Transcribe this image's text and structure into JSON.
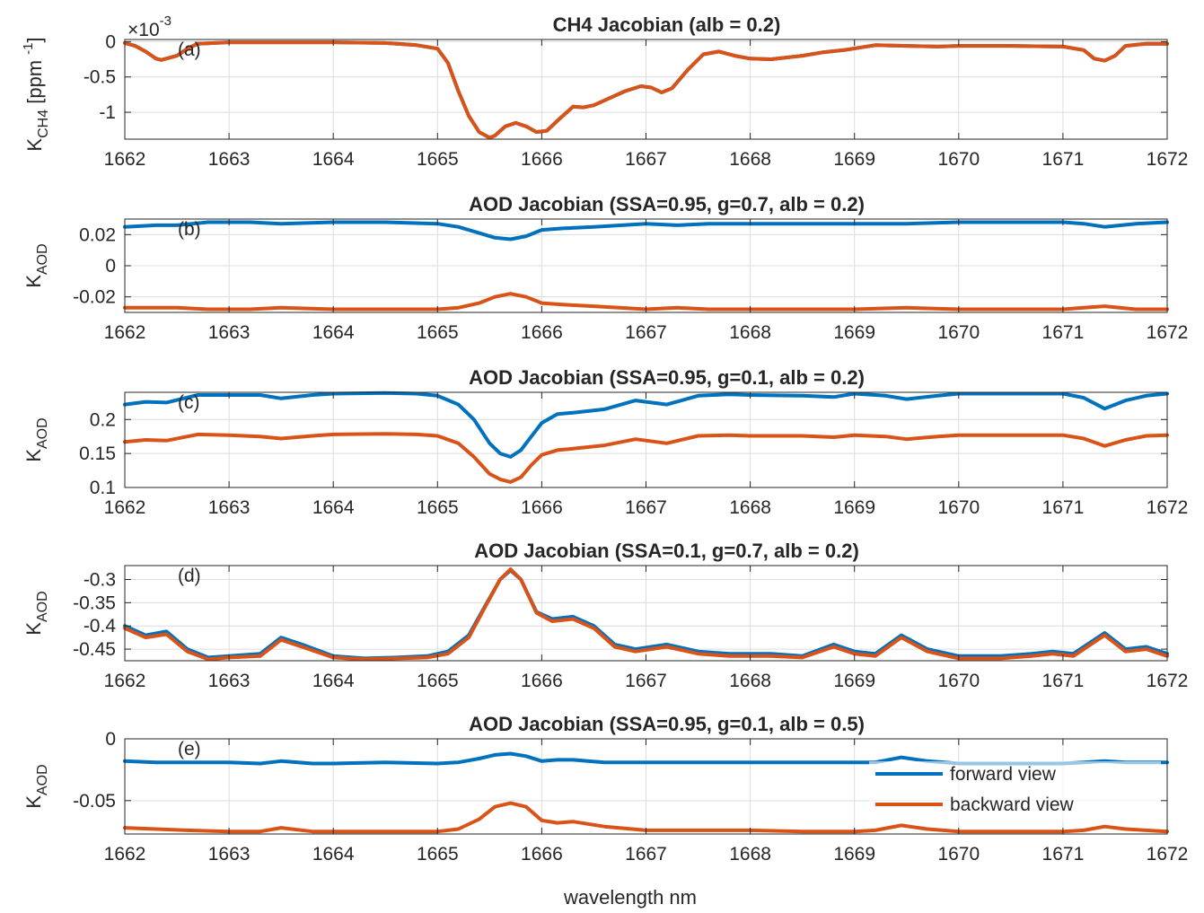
{
  "figure": {
    "xlabel": "wavelength nm",
    "legend": {
      "placement": "inside-bottom-right of panel (e)",
      "entries": [
        {
          "label": "forward view",
          "color": "#0072BD"
        },
        {
          "label": "backward view",
          "color": "#D95319"
        }
      ]
    }
  },
  "chart_data": [
    {
      "type": "line",
      "panel_label": "(a)",
      "title": "CH4 Jacobian (alb = 0.2)",
      "ylabel_main": "K",
      "ylabel_sub": "CH4",
      "ylabel_unit_pre": " [ppm",
      "ylabel_unit_sup": "-1",
      "ylabel_unit_post": "]",
      "exponent_prefix": "×10",
      "exponent": "-3",
      "xlim": [
        1662,
        1672
      ],
      "ylim": [
        -1.38,
        0.03
      ],
      "grid": true,
      "xticks": [
        1662,
        1663,
        1664,
        1665,
        1666,
        1667,
        1668,
        1669,
        1670,
        1671,
        1672
      ],
      "xtick_labels": [
        "1662",
        "1663",
        "1664",
        "1665",
        "1666",
        "1667",
        "1668",
        "1669",
        "1670",
        "1671",
        "1672"
      ],
      "yticks": [
        -1,
        -0.5,
        0
      ],
      "ytick_labels": [
        "-1",
        "-0.5",
        "0"
      ],
      "x": [
        1662.0,
        1662.1,
        1662.2,
        1662.3,
        1662.35,
        1662.5,
        1662.6,
        1662.7,
        1663.0,
        1663.5,
        1664.0,
        1664.5,
        1664.8,
        1665.0,
        1665.1,
        1665.2,
        1665.3,
        1665.4,
        1665.5,
        1665.55,
        1665.65,
        1665.75,
        1665.85,
        1665.95,
        1666.05,
        1666.15,
        1666.3,
        1666.4,
        1666.5,
        1666.65,
        1666.8,
        1666.95,
        1667.05,
        1667.15,
        1667.25,
        1667.4,
        1667.55,
        1667.7,
        1667.85,
        1668.0,
        1668.2,
        1668.5,
        1668.7,
        1668.9,
        1669.2,
        1669.5,
        1669.8,
        1670.0,
        1670.5,
        1671.0,
        1671.2,
        1671.3,
        1671.4,
        1671.5,
        1671.6,
        1671.8,
        1672.0
      ],
      "series": [
        {
          "name": "forward view",
          "color": "#0072BD",
          "values": [
            -0.02,
            -0.06,
            -0.14,
            -0.24,
            -0.26,
            -0.2,
            -0.1,
            -0.03,
            -0.01,
            -0.01,
            -0.01,
            -0.02,
            -0.05,
            -0.1,
            -0.3,
            -0.7,
            -1.05,
            -1.28,
            -1.36,
            -1.33,
            -1.2,
            -1.15,
            -1.2,
            -1.28,
            -1.26,
            -1.12,
            -0.92,
            -0.93,
            -0.9,
            -0.8,
            -0.7,
            -0.63,
            -0.65,
            -0.72,
            -0.66,
            -0.4,
            -0.18,
            -0.14,
            -0.2,
            -0.24,
            -0.25,
            -0.2,
            -0.15,
            -0.12,
            -0.05,
            -0.06,
            -0.07,
            -0.06,
            -0.06,
            -0.07,
            -0.12,
            -0.24,
            -0.27,
            -0.2,
            -0.06,
            -0.03,
            -0.03
          ]
        },
        {
          "name": "backward view",
          "color": "#D95319",
          "values": [
            -0.02,
            -0.06,
            -0.14,
            -0.24,
            -0.26,
            -0.2,
            -0.1,
            -0.03,
            -0.01,
            -0.01,
            -0.01,
            -0.02,
            -0.05,
            -0.1,
            -0.3,
            -0.7,
            -1.05,
            -1.28,
            -1.36,
            -1.33,
            -1.2,
            -1.15,
            -1.2,
            -1.28,
            -1.26,
            -1.12,
            -0.92,
            -0.93,
            -0.9,
            -0.8,
            -0.7,
            -0.63,
            -0.65,
            -0.72,
            -0.66,
            -0.4,
            -0.18,
            -0.14,
            -0.2,
            -0.24,
            -0.25,
            -0.2,
            -0.15,
            -0.12,
            -0.05,
            -0.06,
            -0.07,
            -0.06,
            -0.06,
            -0.07,
            -0.12,
            -0.24,
            -0.27,
            -0.2,
            -0.06,
            -0.03,
            -0.03
          ]
        }
      ]
    },
    {
      "type": "line",
      "panel_label": "(b)",
      "title": "AOD Jacobian (SSA=0.95, g=0.7, alb = 0.2)",
      "ylabel_main": "K",
      "ylabel_sub": "AOD",
      "xlim": [
        1662,
        1672
      ],
      "ylim": [
        -0.03,
        0.03
      ],
      "grid": true,
      "xticks": [
        1662,
        1663,
        1664,
        1665,
        1666,
        1667,
        1668,
        1669,
        1670,
        1671,
        1672
      ],
      "xtick_labels": [
        "1662",
        "1663",
        "1664",
        "1665",
        "1666",
        "1667",
        "1668",
        "1669",
        "1670",
        "1671",
        "1672"
      ],
      "yticks": [
        -0.02,
        0,
        0.02
      ],
      "ytick_labels": [
        "-0.02",
        "0",
        "0.02"
      ],
      "x": [
        1662.0,
        1662.3,
        1662.5,
        1662.8,
        1663.2,
        1663.5,
        1664.0,
        1664.5,
        1665.0,
        1665.2,
        1665.4,
        1665.55,
        1665.7,
        1665.85,
        1666.0,
        1666.2,
        1666.5,
        1667.0,
        1667.3,
        1667.6,
        1668.0,
        1668.5,
        1669.0,
        1669.5,
        1670.0,
        1670.5,
        1671.0,
        1671.2,
        1671.4,
        1671.7,
        1672.0
      ],
      "series": [
        {
          "name": "forward view",
          "color": "#0072BD",
          "values": [
            0.025,
            0.026,
            0.026,
            0.028,
            0.028,
            0.027,
            0.028,
            0.028,
            0.027,
            0.025,
            0.021,
            0.018,
            0.017,
            0.019,
            0.023,
            0.024,
            0.025,
            0.027,
            0.026,
            0.027,
            0.027,
            0.027,
            0.027,
            0.027,
            0.028,
            0.028,
            0.028,
            0.027,
            0.025,
            0.027,
            0.028
          ]
        },
        {
          "name": "backward view",
          "color": "#D95319",
          "values": [
            -0.027,
            -0.027,
            -0.027,
            -0.028,
            -0.028,
            -0.027,
            -0.028,
            -0.028,
            -0.028,
            -0.027,
            -0.024,
            -0.02,
            -0.018,
            -0.02,
            -0.024,
            -0.025,
            -0.026,
            -0.028,
            -0.027,
            -0.028,
            -0.028,
            -0.028,
            -0.028,
            -0.027,
            -0.028,
            -0.028,
            -0.028,
            -0.027,
            -0.026,
            -0.028,
            -0.028
          ]
        }
      ]
    },
    {
      "type": "line",
      "panel_label": "(c)",
      "title": "AOD Jacobian (SSA=0.95, g=0.1, alb = 0.2)",
      "ylabel_main": "K",
      "ylabel_sub": "AOD",
      "xlim": [
        1662,
        1672
      ],
      "ylim": [
        0.1,
        0.24
      ],
      "grid": true,
      "xticks": [
        1662,
        1663,
        1664,
        1665,
        1666,
        1667,
        1668,
        1669,
        1670,
        1671,
        1672
      ],
      "xtick_labels": [
        "1662",
        "1663",
        "1664",
        "1665",
        "1666",
        "1667",
        "1668",
        "1669",
        "1670",
        "1671",
        "1672"
      ],
      "yticks": [
        0.1,
        0.15,
        0.2
      ],
      "ytick_labels": [
        "0.1",
        "0.15",
        "0.2"
      ],
      "x": [
        1662.0,
        1662.2,
        1662.4,
        1662.7,
        1663.0,
        1663.3,
        1663.5,
        1663.8,
        1664.0,
        1664.5,
        1664.8,
        1665.0,
        1665.2,
        1665.35,
        1665.5,
        1665.6,
        1665.7,
        1665.8,
        1665.9,
        1666.0,
        1666.15,
        1666.3,
        1666.6,
        1666.9,
        1667.2,
        1667.5,
        1667.8,
        1668.0,
        1668.5,
        1668.8,
        1669.0,
        1669.3,
        1669.5,
        1669.8,
        1670.0,
        1670.5,
        1671.0,
        1671.2,
        1671.4,
        1671.6,
        1671.8,
        1672.0
      ],
      "series": [
        {
          "name": "forward view",
          "color": "#0072BD",
          "values": [
            0.222,
            0.226,
            0.225,
            0.236,
            0.236,
            0.236,
            0.231,
            0.236,
            0.238,
            0.239,
            0.238,
            0.235,
            0.222,
            0.2,
            0.165,
            0.15,
            0.145,
            0.155,
            0.175,
            0.195,
            0.208,
            0.21,
            0.215,
            0.228,
            0.222,
            0.235,
            0.237,
            0.236,
            0.235,
            0.233,
            0.238,
            0.235,
            0.23,
            0.235,
            0.238,
            0.238,
            0.238,
            0.232,
            0.216,
            0.228,
            0.235,
            0.238
          ]
        },
        {
          "name": "backward view",
          "color": "#D95319",
          "values": [
            0.167,
            0.17,
            0.169,
            0.178,
            0.177,
            0.175,
            0.172,
            0.176,
            0.178,
            0.179,
            0.178,
            0.176,
            0.165,
            0.145,
            0.12,
            0.112,
            0.108,
            0.115,
            0.133,
            0.148,
            0.155,
            0.157,
            0.162,
            0.171,
            0.165,
            0.176,
            0.177,
            0.176,
            0.176,
            0.174,
            0.177,
            0.175,
            0.171,
            0.175,
            0.177,
            0.177,
            0.177,
            0.172,
            0.161,
            0.17,
            0.176,
            0.177
          ]
        }
      ]
    },
    {
      "type": "line",
      "panel_label": "(d)",
      "title": "AOD Jacobian  (SSA=0.1, g=0.7, alb = 0.2)",
      "ylabel_main": "K",
      "ylabel_sub": "AOD",
      "xlim": [
        1662,
        1672
      ],
      "ylim": [
        -0.475,
        -0.27
      ],
      "grid": true,
      "xticks": [
        1662,
        1663,
        1664,
        1665,
        1666,
        1667,
        1668,
        1669,
        1670,
        1671,
        1672
      ],
      "xtick_labels": [
        "1662",
        "1663",
        "1664",
        "1665",
        "1666",
        "1667",
        "1668",
        "1669",
        "1670",
        "1671",
        "1672"
      ],
      "yticks": [
        -0.45,
        -0.4,
        -0.35,
        -0.3
      ],
      "ytick_labels": [
        "-0.45",
        "-0.4",
        "-0.35",
        "-0.3"
      ],
      "x": [
        1662.0,
        1662.2,
        1662.4,
        1662.6,
        1662.8,
        1663.0,
        1663.3,
        1663.5,
        1663.7,
        1664.0,
        1664.3,
        1664.6,
        1664.9,
        1665.1,
        1665.3,
        1665.45,
        1665.6,
        1665.7,
        1665.8,
        1665.95,
        1666.1,
        1666.3,
        1666.5,
        1666.7,
        1666.9,
        1667.2,
        1667.5,
        1667.8,
        1668.2,
        1668.5,
        1668.8,
        1669.0,
        1669.2,
        1669.45,
        1669.7,
        1670.0,
        1670.4,
        1670.7,
        1670.9,
        1671.1,
        1671.4,
        1671.6,
        1671.8,
        1672.0
      ],
      "series": [
        {
          "name": "forward view",
          "color": "#0072BD",
          "values": [
            -0.4,
            -0.42,
            -0.412,
            -0.45,
            -0.468,
            -0.465,
            -0.46,
            -0.425,
            -0.44,
            -0.465,
            -0.47,
            -0.468,
            -0.465,
            -0.455,
            -0.42,
            -0.36,
            -0.3,
            -0.28,
            -0.3,
            -0.37,
            -0.385,
            -0.38,
            -0.4,
            -0.44,
            -0.45,
            -0.44,
            -0.455,
            -0.46,
            -0.46,
            -0.465,
            -0.44,
            -0.455,
            -0.46,
            -0.42,
            -0.45,
            -0.465,
            -0.465,
            -0.46,
            -0.455,
            -0.46,
            -0.415,
            -0.45,
            -0.445,
            -0.46
          ]
        },
        {
          "name": "backward view",
          "color": "#D95319",
          "values": [
            -0.405,
            -0.425,
            -0.418,
            -0.455,
            -0.472,
            -0.468,
            -0.465,
            -0.43,
            -0.445,
            -0.468,
            -0.472,
            -0.47,
            -0.468,
            -0.46,
            -0.425,
            -0.362,
            -0.3,
            -0.278,
            -0.3,
            -0.372,
            -0.39,
            -0.385,
            -0.405,
            -0.445,
            -0.455,
            -0.445,
            -0.46,
            -0.465,
            -0.465,
            -0.468,
            -0.445,
            -0.46,
            -0.465,
            -0.425,
            -0.455,
            -0.47,
            -0.47,
            -0.465,
            -0.46,
            -0.465,
            -0.42,
            -0.455,
            -0.45,
            -0.465
          ]
        }
      ]
    },
    {
      "type": "line",
      "panel_label": "(e)",
      "title": "AOD Jacobian (SSA=0.95, g=0.1, alb = 0.5)",
      "ylabel_main": "K",
      "ylabel_sub": "AOD",
      "xlim": [
        1662,
        1672
      ],
      "ylim": [
        -0.077,
        0
      ],
      "grid": true,
      "xticks": [
        1662,
        1663,
        1664,
        1665,
        1666,
        1667,
        1668,
        1669,
        1670,
        1671,
        1672
      ],
      "xtick_labels": [
        "1662",
        "1663",
        "1664",
        "1665",
        "1666",
        "1667",
        "1668",
        "1669",
        "1670",
        "1671",
        "1672"
      ],
      "yticks": [
        -0.05,
        0
      ],
      "ytick_labels": [
        "-0.05",
        "0"
      ],
      "x": [
        1662.0,
        1662.3,
        1662.6,
        1663.0,
        1663.3,
        1663.5,
        1663.8,
        1664.0,
        1664.5,
        1665.0,
        1665.2,
        1665.4,
        1665.55,
        1665.7,
        1665.85,
        1666.0,
        1666.15,
        1666.3,
        1666.6,
        1667.0,
        1667.5,
        1668.0,
        1668.5,
        1669.0,
        1669.2,
        1669.45,
        1669.7,
        1670.0,
        1670.5,
        1671.0,
        1671.2,
        1671.4,
        1671.6,
        1672.0
      ],
      "series": [
        {
          "name": "forward view",
          "color": "#0072BD",
          "values": [
            -0.018,
            -0.019,
            -0.019,
            -0.019,
            -0.02,
            -0.018,
            -0.02,
            -0.02,
            -0.019,
            -0.02,
            -0.019,
            -0.016,
            -0.013,
            -0.012,
            -0.014,
            -0.018,
            -0.017,
            -0.017,
            -0.019,
            -0.019,
            -0.019,
            -0.019,
            -0.019,
            -0.019,
            -0.019,
            -0.015,
            -0.018,
            -0.02,
            -0.02,
            -0.02,
            -0.019,
            -0.018,
            -0.019,
            -0.019
          ]
        },
        {
          "name": "backward view",
          "color": "#D95319",
          "values": [
            -0.072,
            -0.073,
            -0.074,
            -0.075,
            -0.075,
            -0.072,
            -0.075,
            -0.075,
            -0.075,
            -0.075,
            -0.073,
            -0.065,
            -0.055,
            -0.052,
            -0.055,
            -0.066,
            -0.068,
            -0.067,
            -0.071,
            -0.074,
            -0.074,
            -0.074,
            -0.075,
            -0.075,
            -0.074,
            -0.07,
            -0.073,
            -0.075,
            -0.075,
            -0.075,
            -0.074,
            -0.071,
            -0.073,
            -0.075
          ]
        }
      ]
    }
  ]
}
